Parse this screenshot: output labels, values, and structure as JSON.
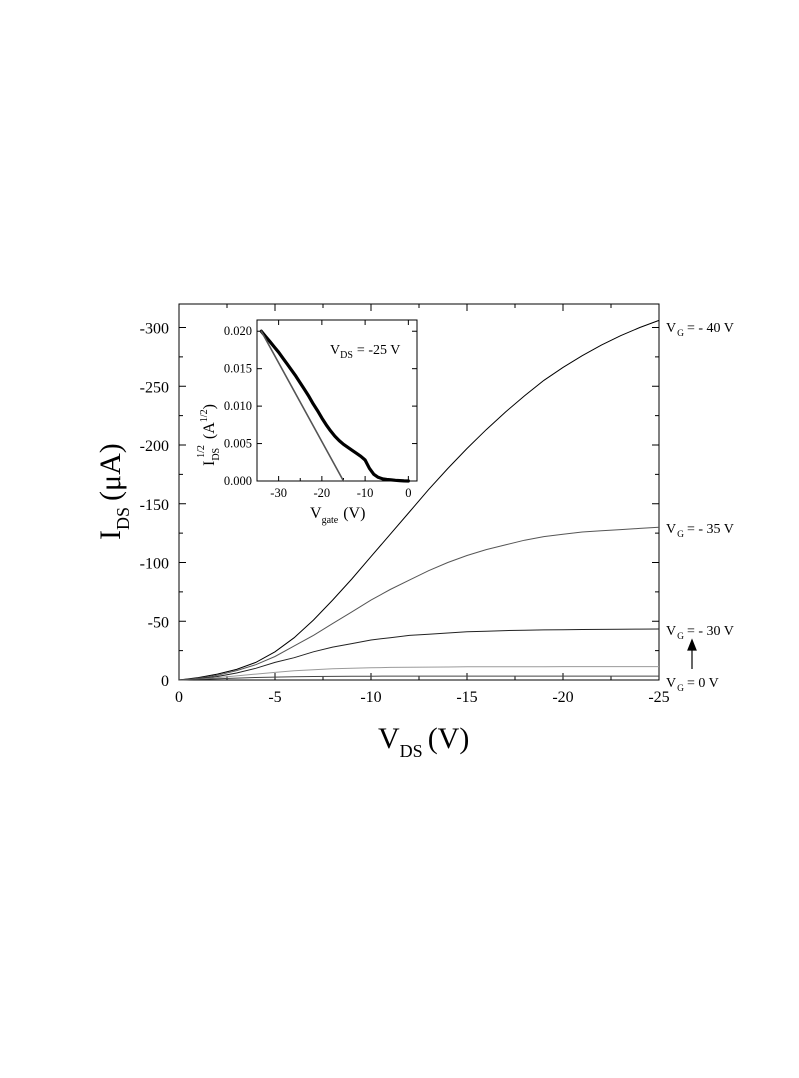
{
  "chart_data": [
    {
      "type": "line",
      "title": "",
      "xlabel": {
        "main": "V",
        "sub": "DS",
        "unit": "(V)"
      },
      "ylabel": {
        "main": "I",
        "sub": "DS",
        "unit": "(μA)"
      },
      "xlim": [
        0,
        -25
      ],
      "ylim": [
        0,
        -320
      ],
      "x_ticks": [
        0,
        -5,
        -10,
        -15,
        -20,
        -25
      ],
      "x_tick_labels": [
        "0",
        "-5",
        "-10",
        "-15",
        "-20",
        "-25"
      ],
      "y_ticks": [
        0,
        -50,
        -100,
        -150,
        -200,
        -250,
        -300
      ],
      "y_tick_labels": [
        "0",
        "-50",
        "-100",
        "-150",
        "-200",
        "-250",
        "-300"
      ],
      "grid": false,
      "x": [
        0,
        -1,
        -2,
        -3,
        -4,
        -5,
        -6,
        -7,
        -8,
        -9,
        -10,
        -11,
        -12,
        -13,
        -14,
        -15,
        -16,
        -17,
        -18,
        -19,
        -20,
        -21,
        -22,
        -23,
        -24,
        -25
      ],
      "series": [
        {
          "values": [
            0,
            -2,
            -5,
            -9,
            -15,
            -24,
            -36,
            -51,
            -68,
            -86,
            -105,
            -124,
            -143,
            -162,
            -180,
            -197,
            -213,
            -228,
            -242,
            -255,
            -266,
            -276,
            -285,
            -293,
            -300,
            -306
          ],
          "color": "#000000"
        },
        {
          "values": [
            0,
            -1.5,
            -4,
            -8,
            -13,
            -20,
            -29,
            -38,
            -48,
            -58,
            -68,
            -77,
            -85,
            -93,
            -100,
            -106,
            -111,
            -115,
            -119,
            -122,
            -124,
            -126,
            -127,
            -128,
            -129,
            -130
          ],
          "color": "#555555"
        },
        {
          "values": [
            0,
            -1,
            -3,
            -6,
            -10,
            -15,
            -19,
            -24,
            -28,
            -31,
            -34,
            -36,
            -38,
            -39,
            -40,
            -41,
            -41.5,
            -42,
            -42.3,
            -42.6,
            -42.8,
            -43,
            -43.1,
            -43.2,
            -43.3,
            -43.4
          ],
          "color": "#222222"
        },
        {
          "values": [
            0,
            -0.8,
            -2,
            -3.5,
            -5,
            -6.5,
            -7.8,
            -8.8,
            -9.5,
            -10,
            -10.4,
            -10.7,
            -10.9,
            -11,
            -11.1,
            -11.2,
            -11.2,
            -11.3,
            -11.3,
            -11.3,
            -11.4,
            -11.4,
            -11.4,
            -11.4,
            -11.4,
            -11.4
          ],
          "color": "#9a9a9a"
        },
        {
          "values": [
            0,
            -0.5,
            -1,
            -1.6,
            -2.1,
            -2.5,
            -2.8,
            -3,
            -3.1,
            -3.2,
            -3.2,
            -3.3,
            -3.3,
            -3.3,
            -3.3,
            -3.3,
            -3.3,
            -3.3,
            -3.3,
            -3.3,
            -3.3,
            -3.3,
            -3.3,
            -3.3,
            -3.3,
            -3.3
          ],
          "color": "#444444"
        }
      ],
      "annotations": [
        {
          "main": "V",
          "sub": "G",
          "text": "= - 40 V",
          "at_y": -306
        },
        {
          "main": "V",
          "sub": "G",
          "text": "= - 35 V",
          "at_y": -130
        },
        {
          "main": "V",
          "sub": "G",
          "text": "= - 30 V",
          "at_y": -43.4
        },
        {
          "main": "V",
          "sub": "G",
          "text": "= 0 V",
          "at_y": 0
        }
      ]
    },
    {
      "type": "line",
      "title": {
        "main": "V",
        "sub": "DS",
        "text": "= -25 V"
      },
      "xlabel": {
        "main": "V",
        "sub": "gate",
        "unit": "(V)"
      },
      "ylabel": {
        "main": "I",
        "sub": "DS",
        "sup": "1/2",
        "unit_main": "(A",
        "unit_sup": "1/2",
        "unit_close": ")"
      },
      "xlim": [
        -35,
        2
      ],
      "ylim": [
        0,
        0.0215
      ],
      "x_ticks": [
        -30,
        -20,
        -10,
        0
      ],
      "x_tick_labels": [
        "-30",
        "-20",
        "-10",
        "0"
      ],
      "y_ticks": [
        0,
        0.005,
        0.01,
        0.015,
        0.02
      ],
      "y_tick_labels": [
        "0.000",
        "0.005",
        "0.010",
        "0.015",
        "0.020"
      ],
      "grid": false,
      "series": [
        {
          "x": [
            -34,
            -33,
            -32,
            -31,
            -30,
            -29,
            -28,
            -27,
            -26,
            -25,
            -24,
            -23,
            -22,
            -21,
            -20,
            -19,
            -18,
            -17,
            -16,
            -15,
            -14,
            -13,
            -12,
            -11,
            -10,
            -9,
            -8,
            -7,
            -6,
            -5,
            -4,
            -3,
            -2,
            -1,
            0
          ],
          "y": [
            0.02,
            0.0193,
            0.0186,
            0.0179,
            0.0172,
            0.0164,
            0.0156,
            0.0148,
            0.014,
            0.0131,
            0.0122,
            0.0113,
            0.0103,
            0.0094,
            0.0084,
            0.0075,
            0.0067,
            0.006,
            0.0054,
            0.0049,
            0.0045,
            0.0041,
            0.0037,
            0.0033,
            0.0028,
            0.0017,
            0.0009,
            0.0005,
            0.0003,
            0.0002,
            0.00015,
            0.0001,
            5e-05,
            2e-05,
            0.0
          ],
          "color": "#000000",
          "style": "thick"
        },
        {
          "x": [
            -34,
            -15
          ],
          "y": [
            0.02,
            0.0
          ],
          "color": "#555555",
          "style": "fit"
        }
      ]
    }
  ]
}
